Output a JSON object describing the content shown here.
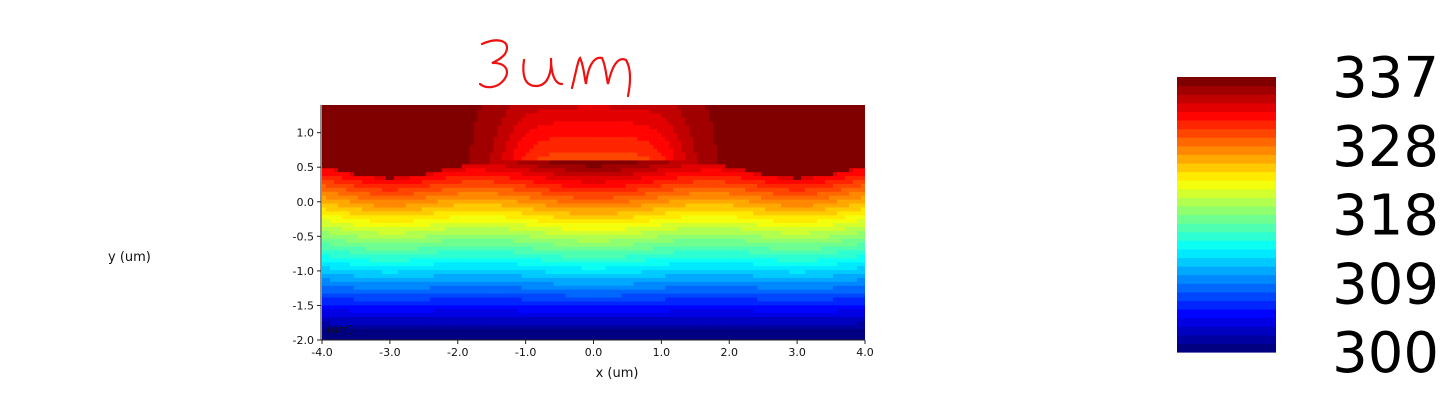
{
  "chart_data": {
    "type": "heatmap",
    "annotation": "3um",
    "xlabel": "x (um)",
    "ylabel": "y (um)",
    "corner_label": "(um)",
    "xlim": [
      -4.0,
      4.0
    ],
    "ylim": [
      -2.0,
      1.4
    ],
    "x_ticks": [
      "-4.0",
      "-3.0",
      "-2.0",
      "-1.0",
      "0.0",
      "1.0",
      "2.0",
      "3.0",
      "4.0"
    ],
    "y_ticks": [
      "-2.0",
      "-1.5",
      "-1.0",
      "-0.5",
      "0.0",
      "0.5",
      "1.0"
    ],
    "colorbar": {
      "min": 300,
      "max": 337,
      "tick_labels": [
        "337",
        "328",
        "318",
        "309",
        "300"
      ],
      "colormap": "jet",
      "levels": 32
    },
    "hot_spots": [
      {
        "x": -3.0,
        "y": 0.95,
        "value": 337
      },
      {
        "x": 3.0,
        "y": 0.95,
        "value": 337
      }
    ],
    "center_column": {
      "x": 0.0,
      "top_value": 330
    }
  }
}
